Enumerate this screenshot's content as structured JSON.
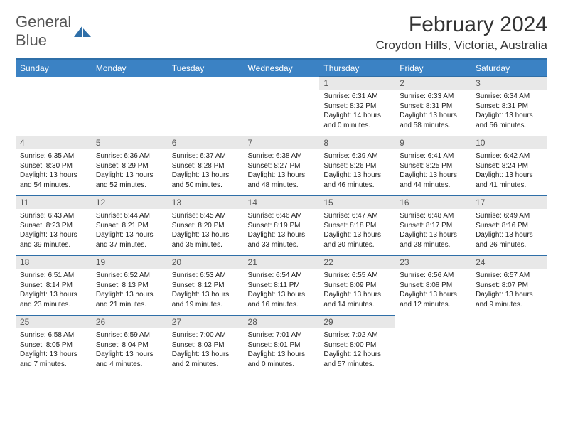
{
  "logo": {
    "text1": "General",
    "text2": "Blue"
  },
  "title": "February 2024",
  "location": "Croydon Hills, Victoria, Australia",
  "colors": {
    "header_bar": "#3b82c4",
    "accent_line": "#2f6fa8",
    "daynum_bg": "#e8e8e8",
    "text": "#222222",
    "logo_blue": "#2f6fa8"
  },
  "weekdays": [
    "Sunday",
    "Monday",
    "Tuesday",
    "Wednesday",
    "Thursday",
    "Friday",
    "Saturday"
  ],
  "weeks": [
    [
      null,
      null,
      null,
      null,
      {
        "n": "1",
        "sr": "6:31 AM",
        "ss": "8:32 PM",
        "dl": "14 hours and 0 minutes."
      },
      {
        "n": "2",
        "sr": "6:33 AM",
        "ss": "8:31 PM",
        "dl": "13 hours and 58 minutes."
      },
      {
        "n": "3",
        "sr": "6:34 AM",
        "ss": "8:31 PM",
        "dl": "13 hours and 56 minutes."
      }
    ],
    [
      {
        "n": "4",
        "sr": "6:35 AM",
        "ss": "8:30 PM",
        "dl": "13 hours and 54 minutes."
      },
      {
        "n": "5",
        "sr": "6:36 AM",
        "ss": "8:29 PM",
        "dl": "13 hours and 52 minutes."
      },
      {
        "n": "6",
        "sr": "6:37 AM",
        "ss": "8:28 PM",
        "dl": "13 hours and 50 minutes."
      },
      {
        "n": "7",
        "sr": "6:38 AM",
        "ss": "8:27 PM",
        "dl": "13 hours and 48 minutes."
      },
      {
        "n": "8",
        "sr": "6:39 AM",
        "ss": "8:26 PM",
        "dl": "13 hours and 46 minutes."
      },
      {
        "n": "9",
        "sr": "6:41 AM",
        "ss": "8:25 PM",
        "dl": "13 hours and 44 minutes."
      },
      {
        "n": "10",
        "sr": "6:42 AM",
        "ss": "8:24 PM",
        "dl": "13 hours and 41 minutes."
      }
    ],
    [
      {
        "n": "11",
        "sr": "6:43 AM",
        "ss": "8:23 PM",
        "dl": "13 hours and 39 minutes."
      },
      {
        "n": "12",
        "sr": "6:44 AM",
        "ss": "8:21 PM",
        "dl": "13 hours and 37 minutes."
      },
      {
        "n": "13",
        "sr": "6:45 AM",
        "ss": "8:20 PM",
        "dl": "13 hours and 35 minutes."
      },
      {
        "n": "14",
        "sr": "6:46 AM",
        "ss": "8:19 PM",
        "dl": "13 hours and 33 minutes."
      },
      {
        "n": "15",
        "sr": "6:47 AM",
        "ss": "8:18 PM",
        "dl": "13 hours and 30 minutes."
      },
      {
        "n": "16",
        "sr": "6:48 AM",
        "ss": "8:17 PM",
        "dl": "13 hours and 28 minutes."
      },
      {
        "n": "17",
        "sr": "6:49 AM",
        "ss": "8:16 PM",
        "dl": "13 hours and 26 minutes."
      }
    ],
    [
      {
        "n": "18",
        "sr": "6:51 AM",
        "ss": "8:14 PM",
        "dl": "13 hours and 23 minutes."
      },
      {
        "n": "19",
        "sr": "6:52 AM",
        "ss": "8:13 PM",
        "dl": "13 hours and 21 minutes."
      },
      {
        "n": "20",
        "sr": "6:53 AM",
        "ss": "8:12 PM",
        "dl": "13 hours and 19 minutes."
      },
      {
        "n": "21",
        "sr": "6:54 AM",
        "ss": "8:11 PM",
        "dl": "13 hours and 16 minutes."
      },
      {
        "n": "22",
        "sr": "6:55 AM",
        "ss": "8:09 PM",
        "dl": "13 hours and 14 minutes."
      },
      {
        "n": "23",
        "sr": "6:56 AM",
        "ss": "8:08 PM",
        "dl": "13 hours and 12 minutes."
      },
      {
        "n": "24",
        "sr": "6:57 AM",
        "ss": "8:07 PM",
        "dl": "13 hours and 9 minutes."
      }
    ],
    [
      {
        "n": "25",
        "sr": "6:58 AM",
        "ss": "8:05 PM",
        "dl": "13 hours and 7 minutes."
      },
      {
        "n": "26",
        "sr": "6:59 AM",
        "ss": "8:04 PM",
        "dl": "13 hours and 4 minutes."
      },
      {
        "n": "27",
        "sr": "7:00 AM",
        "ss": "8:03 PM",
        "dl": "13 hours and 2 minutes."
      },
      {
        "n": "28",
        "sr": "7:01 AM",
        "ss": "8:01 PM",
        "dl": "13 hours and 0 minutes."
      },
      {
        "n": "29",
        "sr": "7:02 AM",
        "ss": "8:00 PM",
        "dl": "12 hours and 57 minutes."
      },
      null,
      null
    ]
  ],
  "labels": {
    "sunrise": "Sunrise:",
    "sunset": "Sunset:",
    "daylight": "Daylight:"
  }
}
